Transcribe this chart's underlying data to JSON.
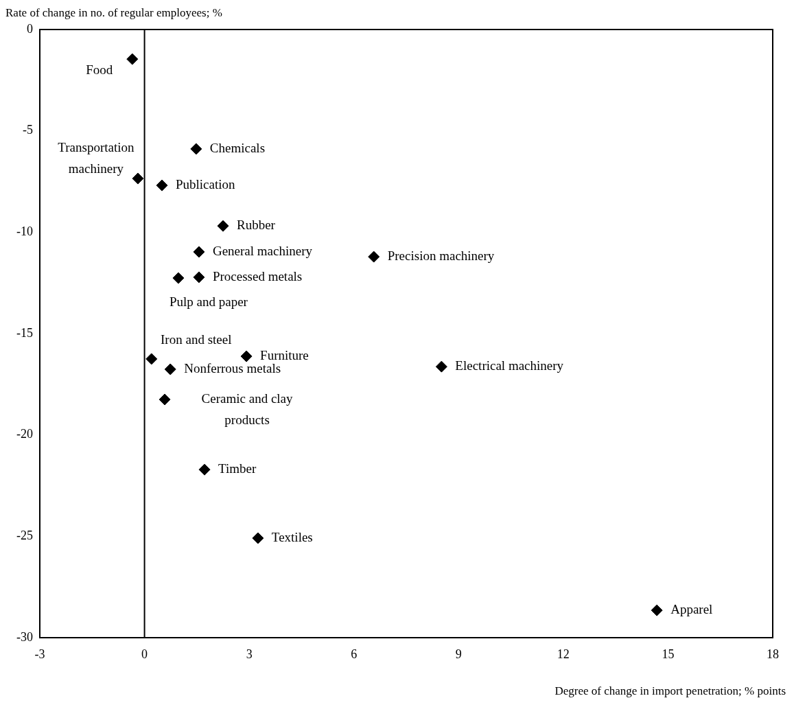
{
  "chart_data": {
    "type": "scatter",
    "xlabel": "Degree of change in import penetration; % points",
    "ylabel": "Rate of change in no. of regular employees; %",
    "x": [
      -0.35,
      1.48,
      -0.19,
      0.5,
      2.25,
      1.56,
      6.57,
      1.56,
      0.97,
      0.2,
      2.92,
      0.74,
      8.51,
      0.58,
      1.72,
      3.25,
      14.68
    ],
    "series": [
      {
        "color": "#000000",
        "values": [
          -1.46,
          -5.89,
          -7.35,
          -7.69,
          -9.69,
          -10.97,
          -11.21,
          -12.22,
          -12.26,
          -16.25,
          -16.12,
          -16.76,
          -16.63,
          -18.25,
          -21.71,
          -25.09,
          -28.65
        ]
      }
    ],
    "marker": "diamond",
    "grid": false,
    "legend": false,
    "xlim": [
      -3,
      18
    ],
    "xticks": [
      -3,
      0,
      3,
      6,
      9,
      12,
      15,
      18
    ],
    "ylim": [
      -30,
      0
    ],
    "yticks": [
      -30,
      -25,
      -20,
      -15,
      -10,
      -5,
      0
    ],
    "ref_lines": [
      {
        "axis": "x",
        "value": 0,
        "color": "#000000"
      }
    ],
    "annotations": [
      {
        "text": "Food",
        "x": -0.35,
        "y": -1.46
      },
      {
        "text": "Chemicals",
        "x": 1.48,
        "y": -5.89
      },
      {
        "text": "Transportation machinery",
        "x": -0.19,
        "y": -7.35
      },
      {
        "text": "Publication",
        "x": 0.5,
        "y": -7.69
      },
      {
        "text": "Rubber",
        "x": 2.25,
        "y": -9.69
      },
      {
        "text": "General machinery",
        "x": 1.56,
        "y": -10.97
      },
      {
        "text": "Precision machinery",
        "x": 6.57,
        "y": -11.21
      },
      {
        "text": "Processed metals",
        "x": 1.56,
        "y": -12.22
      },
      {
        "text": "Pulp and paper",
        "x": 0.97,
        "y": -12.26
      },
      {
        "text": "Iron and steel",
        "x": 0.2,
        "y": -16.25
      },
      {
        "text": "Furniture",
        "x": 2.92,
        "y": -16.12
      },
      {
        "text": "Nonferrous metals",
        "x": 0.74,
        "y": -16.76
      },
      {
        "text": "Electrical machinery",
        "x": 8.51,
        "y": -16.63
      },
      {
        "text": "Ceramic and clay products",
        "x": 0.58,
        "y": -18.25
      },
      {
        "text": "Timber",
        "x": 1.72,
        "y": -21.71
      },
      {
        "text": "Textiles",
        "x": 3.25,
        "y": -25.09
      },
      {
        "text": "Apparel",
        "x": 14.68,
        "y": -28.65
      }
    ]
  }
}
